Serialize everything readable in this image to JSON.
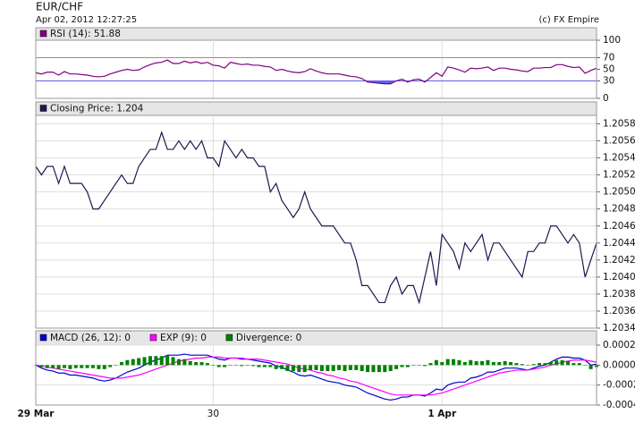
{
  "header": {
    "title": "EUR/CHF",
    "subtitle": "Apr 02, 2012 12:27:25",
    "credit": "(c) FX Empire"
  },
  "chart_data": [
    {
      "type": "line",
      "series": [
        {
          "name": "RSI (14): 51.88",
          "color": "#800080",
          "fill_below": 30,
          "fill_color": "#6060ff",
          "values": [
            44,
            42,
            45,
            45,
            40,
            46,
            42,
            42,
            41,
            40,
            38,
            37,
            38,
            42,
            45,
            48,
            50,
            48,
            49,
            54,
            58,
            61,
            62,
            66,
            60,
            60,
            64,
            61,
            63,
            60,
            62,
            57,
            56,
            52,
            62,
            60,
            58,
            59,
            57,
            57,
            55,
            54,
            48,
            50,
            47,
            45,
            44,
            46,
            51,
            47,
            44,
            42,
            42,
            42,
            40,
            38,
            37,
            34,
            28,
            27,
            26,
            25,
            25,
            30,
            33,
            28,
            32,
            33,
            28,
            36,
            44,
            38,
            54,
            52,
            49,
            45,
            52,
            51,
            52,
            54,
            48,
            52,
            52,
            50,
            49,
            47,
            46,
            52,
            52,
            53,
            53,
            58,
            58,
            55,
            53,
            54,
            43,
            48,
            51.88
          ]
        }
      ],
      "ylim": [
        0,
        100
      ],
      "yticks": [
        0,
        30,
        50,
        70,
        100
      ],
      "grid": false,
      "levels": [
        {
          "value": 70,
          "color": "#e07070"
        },
        {
          "value": 30,
          "color": "#6060e0"
        }
      ]
    },
    {
      "type": "line",
      "series": [
        {
          "name": "Closing Price: 1.204",
          "color": "#1a1a50",
          "values": [
            1.2053,
            1.2052,
            1.2053,
            1.2053,
            1.2051,
            1.2053,
            1.2051,
            1.2051,
            1.2051,
            1.205,
            1.2048,
            1.2048,
            1.2049,
            1.205,
            1.2051,
            1.2052,
            1.2051,
            1.2051,
            1.2053,
            1.2054,
            1.2055,
            1.2055,
            1.2057,
            1.2055,
            1.2055,
            1.2056,
            1.2055,
            1.2056,
            1.2055,
            1.2056,
            1.2054,
            1.2054,
            1.2053,
            1.2056,
            1.2055,
            1.2054,
            1.2055,
            1.2054,
            1.2054,
            1.2053,
            1.2053,
            1.205,
            1.2051,
            1.2049,
            1.2048,
            1.2047,
            1.2048,
            1.205,
            1.2048,
            1.2047,
            1.2046,
            1.2046,
            1.2046,
            1.2045,
            1.2044,
            1.2044,
            1.2042,
            1.2039,
            1.2039,
            1.2038,
            1.2037,
            1.2037,
            1.2039,
            1.204,
            1.2038,
            1.2039,
            1.2039,
            1.2037,
            1.204,
            1.2043,
            1.2039,
            1.2045,
            1.2044,
            1.2043,
            1.2041,
            1.2044,
            1.2043,
            1.2044,
            1.2045,
            1.2042,
            1.2044,
            1.2044,
            1.2043,
            1.2042,
            1.2041,
            1.204,
            1.2043,
            1.2043,
            1.2044,
            1.2044,
            1.2046,
            1.2046,
            1.2045,
            1.2044,
            1.2045,
            1.2044,
            1.204,
            1.2042,
            1.2044
          ]
        }
      ],
      "ylim": [
        1.2034,
        1.2059
      ],
      "yticks": [
        1.2034,
        1.2036,
        1.2038,
        {
          "value": 1.204,
          "label": "1.2040"
        },
        1.2042,
        1.2044,
        1.2046,
        1.2048,
        {
          "value": 1.205,
          "label": "1.2050"
        },
        1.2052,
        1.2054,
        1.2056,
        1.2058
      ],
      "grid": true
    },
    {
      "type": "macd",
      "categories": [
        "29 Mar",
        null,
        null,
        null,
        null,
        null,
        null,
        null,
        null,
        null,
        null,
        null,
        null,
        null,
        null,
        null,
        null,
        null,
        null,
        null,
        null,
        null,
        null,
        null,
        null,
        null,
        null,
        null,
        null,
        null,
        null,
        "30",
        null,
        null,
        null,
        null,
        null,
        null,
        null,
        null,
        null,
        null,
        null,
        null,
        null,
        null,
        null,
        null,
        null,
        null,
        null,
        null,
        null,
        null,
        null,
        null,
        null,
        null,
        null,
        null,
        null,
        null,
        null,
        null,
        null,
        null,
        null,
        null,
        null,
        null,
        null,
        "1 Apr",
        null,
        null,
        null,
        null,
        null,
        null,
        null,
        null,
        null,
        null,
        null,
        null,
        null,
        null,
        null,
        null,
        null,
        null,
        null,
        null,
        null,
        null,
        null,
        null,
        null,
        null,
        null
      ],
      "series": [
        {
          "name": "MACD (26, 12): 0",
          "color": "#0000cc",
          "style": "line",
          "values": [
            0,
            -3e-05,
            -5e-05,
            -6e-05,
            -8e-05,
            -8e-05,
            -0.0001,
            -0.0001,
            -0.00011,
            -0.00012,
            -0.00013,
            -0.00015,
            -0.00016,
            -0.00015,
            -0.00013,
            -0.0001,
            -7e-05,
            -5e-05,
            -3e-05,
            0,
            3e-05,
            5e-05,
            7e-05,
            0.0001,
            0.0001,
            0.0001,
            0.00011,
            0.0001,
            0.0001,
            0.0001,
            0.0001,
            8e-05,
            6e-05,
            5e-05,
            7e-05,
            7e-05,
            6e-05,
            6e-05,
            5e-05,
            4e-05,
            3e-05,
            2e-05,
            -1e-05,
            -2e-05,
            -5e-05,
            -7e-05,
            -0.0001,
            -0.00011,
            -0.0001,
            -0.00012,
            -0.00014,
            -0.00016,
            -0.00017,
            -0.00018,
            -0.0002,
            -0.00021,
            -0.00022,
            -0.00025,
            -0.00028,
            -0.0003,
            -0.00032,
            -0.00034,
            -0.00035,
            -0.00034,
            -0.00032,
            -0.00032,
            -0.0003,
            -0.0003,
            -0.00031,
            -0.00028,
            -0.00024,
            -0.00025,
            -0.0002,
            -0.00018,
            -0.00017,
            -0.00017,
            -0.00013,
            -0.00012,
            -0.0001,
            -7e-05,
            -7e-05,
            -5e-05,
            -3e-05,
            -3e-05,
            -3e-05,
            -4e-05,
            -5e-05,
            -3e-05,
            -1e-05,
            0,
            3e-05,
            6e-05,
            8e-05,
            8e-05,
            7e-05,
            7e-05,
            5e-05,
            0,
            1e-05
          ]
        },
        {
          "name": "EXP (9): 0",
          "color": "#ff00ff",
          "style": "line",
          "values": [
            0,
            -1e-05,
            -2e-05,
            -3e-05,
            -4e-05,
            -5e-05,
            -6e-05,
            -7e-05,
            -8e-05,
            -9e-05,
            -0.0001,
            -0.00011,
            -0.00012,
            -0.00013,
            -0.00013,
            -0.00013,
            -0.00012,
            -0.00011,
            -0.0001,
            -8e-05,
            -6e-05,
            -4e-05,
            -2e-05,
            0,
            2e-05,
            4e-05,
            5e-05,
            6e-05,
            7e-05,
            7e-05,
            8e-05,
            8e-05,
            8e-05,
            7e-05,
            7e-05,
            7e-05,
            7e-05,
            6e-05,
            6e-05,
            6e-05,
            5e-05,
            4e-05,
            3e-05,
            2e-05,
            1e-05,
            -1e-05,
            -3e-05,
            -4e-05,
            -5e-05,
            -7e-05,
            -8e-05,
            -0.0001,
            -0.00011,
            -0.00013,
            -0.00014,
            -0.00016,
            -0.00017,
            -0.00019,
            -0.00021,
            -0.00023,
            -0.00025,
            -0.00027,
            -0.00029,
            -0.0003,
            -0.0003,
            -0.0003,
            -0.0003,
            -0.0003,
            -0.0003,
            -0.0003,
            -0.00029,
            -0.00028,
            -0.00026,
            -0.00024,
            -0.00022,
            -0.0002,
            -0.00018,
            -0.00016,
            -0.00014,
            -0.00012,
            -0.0001,
            -8e-05,
            -7e-05,
            -6e-05,
            -5e-05,
            -5e-05,
            -5e-05,
            -4e-05,
            -3e-05,
            -2e-05,
            0,
            1e-05,
            3e-05,
            4e-05,
            5e-05,
            5e-05,
            5e-05,
            4e-05,
            3e-05
          ]
        },
        {
          "name": "Divergence: 0",
          "color": "#008000",
          "style": "bar",
          "values": [
            0,
            -2e-05,
            -3e-05,
            -3e-05,
            -4e-05,
            -3e-05,
            -4e-05,
            -3e-05,
            -3e-05,
            -3e-05,
            -3e-05,
            -4e-05,
            -4e-05,
            -2e-05,
            0,
            3e-05,
            5e-05,
            6e-05,
            7e-05,
            8e-05,
            9e-05,
            9e-05,
            9e-05,
            0.0001,
            8e-05,
            6e-05,
            6e-05,
            4e-05,
            3e-05,
            3e-05,
            2e-05,
            0,
            -2e-05,
            -2e-05,
            0,
            0,
            -1e-05,
            0,
            -1e-05,
            -2e-05,
            -2e-05,
            -2e-05,
            -4e-05,
            -4e-05,
            -6e-05,
            -6e-05,
            -7e-05,
            -7e-05,
            -5e-05,
            -5e-05,
            -6e-05,
            -6e-05,
            -6e-05,
            -5e-05,
            -6e-05,
            -5e-05,
            -5e-05,
            -6e-05,
            -7e-05,
            -7e-05,
            -7e-05,
            -7e-05,
            -6e-05,
            -4e-05,
            -2e-05,
            -2e-05,
            0,
            0,
            -1e-05,
            2e-05,
            5e-05,
            3e-05,
            6e-05,
            6e-05,
            5e-05,
            3e-05,
            5e-05,
            4e-05,
            4e-05,
            5e-05,
            3e-05,
            3e-05,
            4e-05,
            3e-05,
            2e-05,
            1e-05,
            0,
            1e-05,
            2e-05,
            2e-05,
            3e-05,
            5e-05,
            5e-05,
            4e-05,
            2e-05,
            2e-05,
            0,
            -4e-05,
            -2e-05
          ]
        }
      ],
      "ylim": [
        -0.0004,
        0.0002
      ],
      "yticks": [
        -0.0004,
        -0.0002,
        {
          "value": 0,
          "label": "0.0000"
        },
        0.0002
      ],
      "grid": true
    }
  ]
}
